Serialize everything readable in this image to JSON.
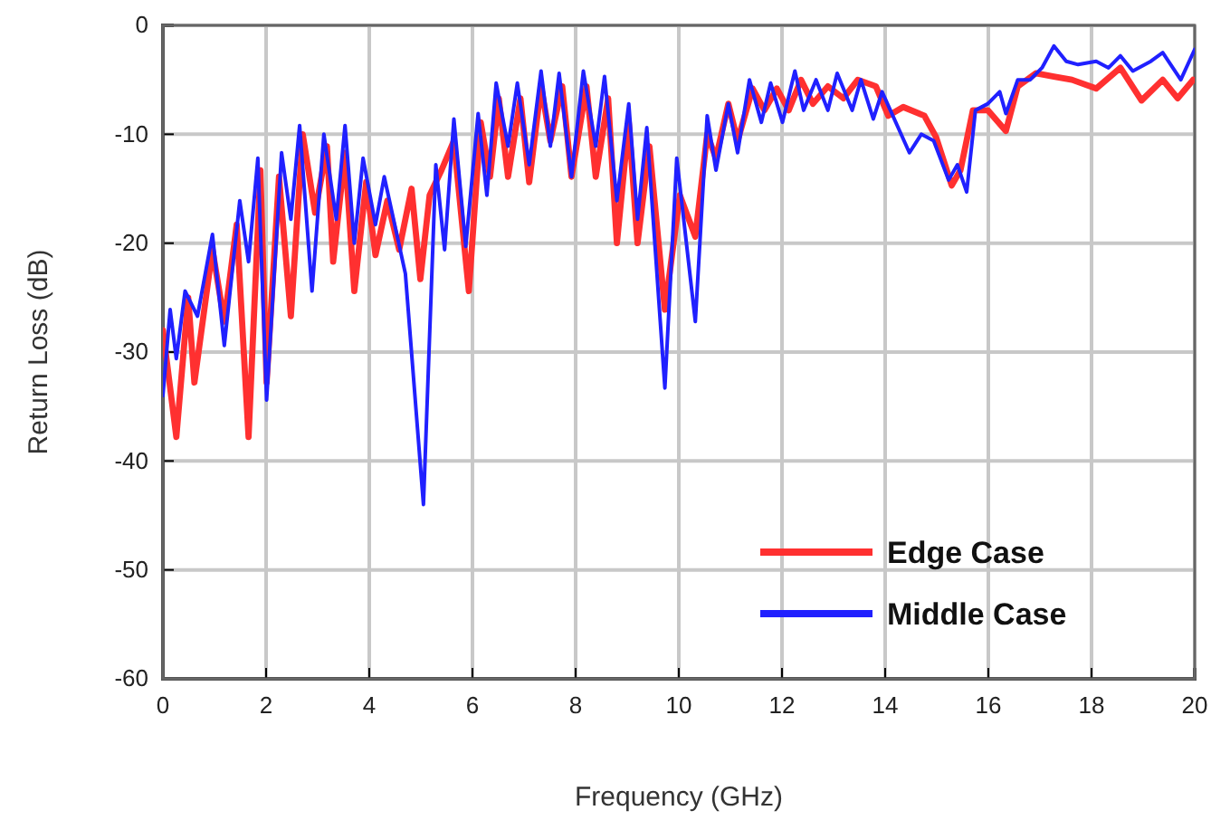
{
  "chart_data": {
    "type": "line",
    "xlabel": "Frequency (GHz)",
    "ylabel": "Return Loss (dB)",
    "xlim": [
      0,
      20
    ],
    "xticks": [
      0,
      2,
      4,
      6,
      8,
      10,
      12,
      14,
      16,
      18,
      20
    ],
    "ylim": [
      -60,
      0
    ],
    "yticks": [
      -60,
      -50,
      -40,
      -30,
      -20,
      -10,
      0
    ],
    "grid": true,
    "legend": "bottom right",
    "line_style": "solid",
    "marker": "none",
    "series": [
      {
        "name": "Edge Case",
        "color": "#ff3030",
        "x": [
          0,
          0.26,
          0.49,
          0.61,
          0.96,
          1.19,
          1.43,
          1.66,
          1.89,
          2.01,
          2.25,
          2.48,
          2.71,
          2.95,
          3.18,
          3.3,
          3.53,
          3.71,
          3.94,
          4.12,
          4.35,
          4.58,
          4.82,
          4.99,
          5.17,
          5.4,
          5.64,
          5.93,
          6.16,
          6.34,
          6.51,
          6.69,
          6.93,
          7.1,
          7.33,
          7.51,
          7.74,
          7.92,
          8.21,
          8.39,
          8.63,
          8.8,
          9.03,
          9.2,
          9.43,
          9.73,
          10.02,
          10.32,
          10.55,
          10.72,
          10.96,
          11.14,
          11.43,
          11.66,
          11.9,
          12.13,
          12.37,
          12.6,
          12.89,
          13.19,
          13.47,
          13.82,
          14.06,
          14.35,
          14.76,
          14.99,
          15.29,
          15.46,
          15.7,
          15.99,
          16.34,
          16.57,
          16.92,
          17.27,
          17.62,
          18.09,
          18.56,
          18.97,
          19.38,
          19.67,
          19.97
        ],
        "values": [
          -28,
          -37.8,
          -25,
          -32.8,
          -20.6,
          -27.2,
          -18.3,
          -37.8,
          -13.3,
          -32.8,
          -13.9,
          -26.7,
          -10,
          -17.2,
          -11.1,
          -21.7,
          -11.7,
          -24.4,
          -14.4,
          -21.1,
          -16.1,
          -20.6,
          -15,
          -23.3,
          -15.6,
          -13.3,
          -10.6,
          -24.4,
          -8.9,
          -13.9,
          -6.7,
          -13.9,
          -6.7,
          -14.4,
          -5.6,
          -10.6,
          -5.6,
          -13.9,
          -5.6,
          -13.9,
          -6.7,
          -20,
          -8.9,
          -20,
          -11.1,
          -26.1,
          -15.6,
          -19.4,
          -10,
          -12.2,
          -7.2,
          -10.6,
          -5.8,
          -7.8,
          -5.8,
          -7.8,
          -5,
          -7.2,
          -5.6,
          -6.7,
          -5,
          -5.6,
          -8.3,
          -7.5,
          -8.3,
          -10.3,
          -14.7,
          -13.3,
          -7.8,
          -7.8,
          -9.7,
          -5.6,
          -4.4,
          -4.7,
          -5,
          -5.8,
          -3.9,
          -6.9,
          -5,
          -6.7,
          -5
        ]
      },
      {
        "name": "Middle Case",
        "color": "#2020ff",
        "x": [
          0,
          0.14,
          0.26,
          0.43,
          0.67,
          0.96,
          1.19,
          1.49,
          1.66,
          1.84,
          2.01,
          2.3,
          2.48,
          2.65,
          2.89,
          3.12,
          3.36,
          3.53,
          3.71,
          3.88,
          4.12,
          4.29,
          4.7,
          5.05,
          5.29,
          5.46,
          5.64,
          5.87,
          6.11,
          6.28,
          6.46,
          6.69,
          6.87,
          7.1,
          7.33,
          7.51,
          7.68,
          7.92,
          8.15,
          8.39,
          8.56,
          8.8,
          9.03,
          9.2,
          9.38,
          9.73,
          9.96,
          10.32,
          10.55,
          10.72,
          10.96,
          11.14,
          11.37,
          11.6,
          11.78,
          12.01,
          12.25,
          12.42,
          12.66,
          12.89,
          13.07,
          13.36,
          13.53,
          13.77,
          13.94,
          14.47,
          14.7,
          14.94,
          15.23,
          15.4,
          15.58,
          15.75,
          15.99,
          16.22,
          16.34,
          16.57,
          16.81,
          17.04,
          17.27,
          17.51,
          17.74,
          18.09,
          18.33,
          18.56,
          18.8,
          19.15,
          19.38,
          19.73,
          20
        ],
        "values": [
          -34,
          -26.1,
          -30.6,
          -24.4,
          -26.7,
          -19.2,
          -29.4,
          -16.1,
          -21.7,
          -12.2,
          -34.4,
          -11.7,
          -17.8,
          -9.2,
          -24.4,
          -10,
          -17.8,
          -9.2,
          -20,
          -12.2,
          -18.3,
          -13.9,
          -22.8,
          -44,
          -12.8,
          -20.6,
          -8.6,
          -20.3,
          -8.1,
          -15.6,
          -5.3,
          -11.1,
          -5.3,
          -12.8,
          -4.2,
          -11.1,
          -4.4,
          -13.9,
          -4.2,
          -11.1,
          -4.7,
          -16.1,
          -7.2,
          -17.8,
          -9.4,
          -33.3,
          -12.2,
          -27.2,
          -8.3,
          -13.3,
          -7.2,
          -11.7,
          -5,
          -8.9,
          -5.3,
          -8.9,
          -4.2,
          -7.8,
          -5,
          -7.8,
          -4.4,
          -7.8,
          -5,
          -8.6,
          -6.1,
          -11.7,
          -10,
          -10.6,
          -14.2,
          -12.8,
          -15.3,
          -7.8,
          -7.2,
          -6.1,
          -8.1,
          -5,
          -5,
          -3.9,
          -1.9,
          -3.3,
          -3.6,
          -3.3,
          -3.9,
          -2.8,
          -4.2,
          -3.3,
          -2.5,
          -5,
          -2.2
        ]
      }
    ]
  }
}
